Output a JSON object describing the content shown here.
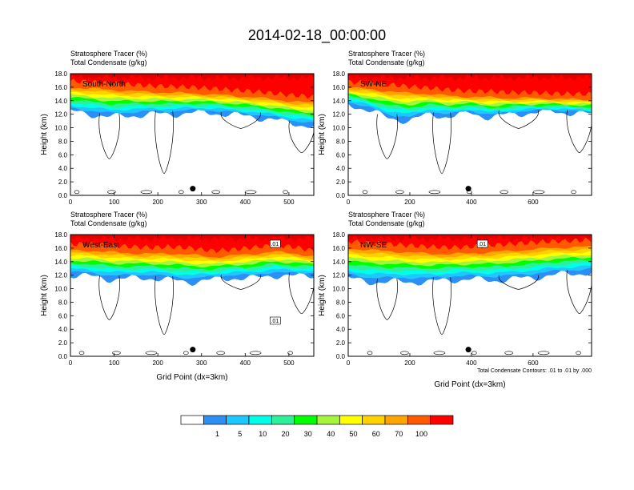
{
  "title": "2014-02-18_00:00:00",
  "panel_header": {
    "line1": "Stratosphere Tracer   (%)",
    "line2": "Total Condensate   (g/kg)"
  },
  "contour_note": "Total Condensate Contours: .01 to .01 by .000",
  "colorbar": {
    "labels": [
      "1",
      "5",
      "10",
      "20",
      "30",
      "40",
      "50",
      "60",
      "70",
      "100"
    ],
    "colors": [
      "#ffffff",
      "#2b8ff5",
      "#1ec8ff",
      "#00ffe6",
      "#2ef09a",
      "#00ff00",
      "#a5f53c",
      "#ffff00",
      "#ffd200",
      "#ffa500",
      "#ff5a00",
      "#ff0000"
    ]
  },
  "chart_data": [
    {
      "type": "heatmap",
      "panel": "South-North",
      "title": "Stratosphere Tracer (%) / Total Condensate (g/kg)",
      "xlabel": "",
      "ylabel": "Height (km)",
      "xlim": [
        0,
        557
      ],
      "ylim": [
        0,
        18
      ],
      "xticks": [
        "0",
        "100",
        "200",
        "300",
        "400",
        "500"
      ],
      "yticks": [
        "0.0",
        "2.0",
        "4.0",
        "6.0",
        "8.0",
        "10.0",
        "12.0",
        "14.0",
        "16.0",
        "18.0"
      ],
      "marker_x": 280,
      "marker_y": 1.0,
      "contour_labels": [],
      "stratosphere_top_km": [
        16.3,
        16.2,
        16.0,
        15.8,
        15.6,
        15.5,
        15.4,
        15.2,
        15.0,
        14.8,
        14.5,
        14.2,
        14.0
      ],
      "tracer_base_km": [
        12.4,
        12.0,
        11.6,
        11.8,
        12.0,
        12.0,
        12.2,
        12.2,
        11.9,
        11.6,
        11.2,
        10.6,
        10.2
      ]
    },
    {
      "type": "heatmap",
      "panel": "SW-NE",
      "title": "Stratosphere Tracer (%) / Total Condensate (g/kg)",
      "xlabel": "",
      "ylabel": "Height (km)",
      "xlim": [
        0,
        790
      ],
      "ylim": [
        0,
        18
      ],
      "xticks": [
        "0",
        "200",
        "400",
        "600"
      ],
      "yticks": [
        "0.0",
        "2.0",
        "4.0",
        "6.0",
        "8.0",
        "10.0",
        "12.0",
        "14.0",
        "16.0",
        "18.0"
      ],
      "marker_x": 390,
      "marker_y": 1.0,
      "contour_labels": [],
      "stratosphere_top_km": [
        16.2,
        16.0,
        15.8,
        15.5,
        15.3,
        15.0,
        14.8,
        14.8,
        14.6,
        14.6,
        14.5,
        14.4,
        14.4
      ],
      "tracer_base_km": [
        13.5,
        12.6,
        11.4,
        11.0,
        12.0,
        11.6,
        12.2,
        11.5,
        12.0,
        12.2,
        12.4,
        12.2,
        12.0
      ]
    },
    {
      "type": "heatmap",
      "panel": "West-East",
      "title": "Stratosphere Tracer (%) / Total Condensate (g/kg)",
      "xlabel": "Grid Point (dx=3km)",
      "ylabel": "Height (km)",
      "xlim": [
        0,
        557
      ],
      "ylim": [
        0,
        18
      ],
      "xticks": [
        "0",
        "100",
        "200",
        "300",
        "400",
        "500"
      ],
      "yticks": [
        "0.0",
        "2.0",
        "4.0",
        "6.0",
        "8.0",
        "10.0",
        "12.0",
        "14.0",
        "16.0",
        "18.0"
      ],
      "marker_x": 280,
      "marker_y": 1.0,
      "contour_labels": [
        ".01",
        ".01"
      ],
      "stratosphere_top_km": [
        16.0,
        16.0,
        15.8,
        15.6,
        15.5,
        15.6,
        15.4,
        15.0,
        15.2,
        15.5,
        15.8,
        15.6,
        15.0
      ],
      "tracer_base_km": [
        12.0,
        11.8,
        11.4,
        11.5,
        11.6,
        11.2,
        11.0,
        11.3,
        11.6,
        11.5,
        12.0,
        11.8,
        12.0
      ]
    },
    {
      "type": "heatmap",
      "panel": "NW-SE",
      "title": "Stratosphere Tracer (%) / Total Condensate (g/kg)",
      "xlabel": "Grid Point (dx=3km)",
      "ylabel": "Height (km)",
      "xlim": [
        0,
        790
      ],
      "ylim": [
        0,
        18
      ],
      "xticks": [
        "0",
        "200",
        "400",
        "600"
      ],
      "yticks": [
        "0.0",
        "2.0",
        "4.0",
        "6.0",
        "8.0",
        "10.0",
        "12.0",
        "14.0",
        "16.0",
        "18.0"
      ],
      "marker_x": 390,
      "marker_y": 1.0,
      "contour_labels": [
        ".01"
      ],
      "stratosphere_top_km": [
        16.4,
        16.2,
        16.0,
        15.8,
        15.6,
        15.5,
        15.6,
        15.8,
        16.0,
        16.2,
        16.4,
        16.5,
        16.6
      ],
      "tracer_base_km": [
        11.5,
        11.0,
        11.0,
        11.0,
        11.0,
        11.3,
        11.4,
        11.2,
        11.4,
        11.6,
        12.0,
        12.2,
        12.4
      ]
    }
  ]
}
